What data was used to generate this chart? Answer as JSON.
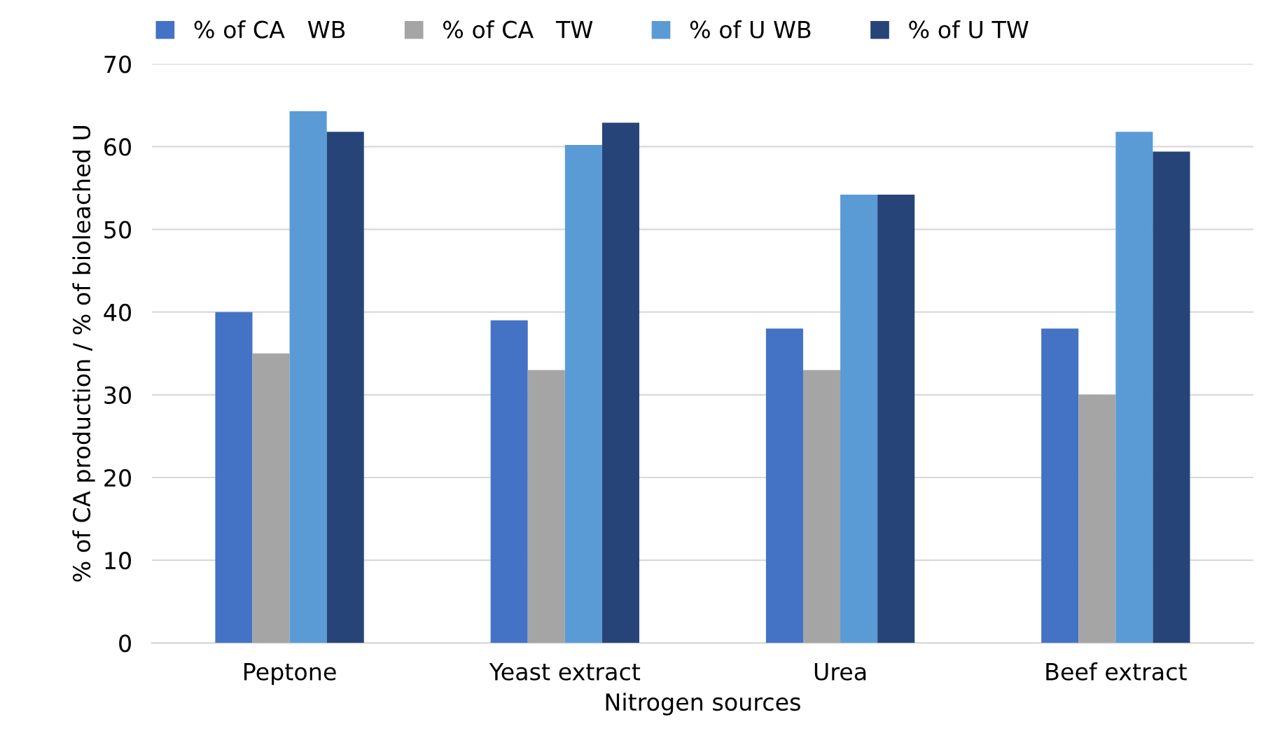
{
  "chart_data": {
    "type": "bar",
    "xlabel": "Nitrogen sources",
    "ylabel": "% of CA production / % of bioleached U",
    "categories": [
      "Peptone",
      "Yeast extract",
      "Urea",
      "Beef extract"
    ],
    "series": [
      {
        "name": "% of CA   WB",
        "color": "#4472c4",
        "values": [
          40,
          39,
          38,
          38
        ]
      },
      {
        "name": "% of CA   TW",
        "color": "#a5a5a5",
        "values": [
          35,
          33,
          33,
          30
        ]
      },
      {
        "name": "% of U WB",
        "color": "#5b9bd5",
        "values": [
          64.3,
          60.2,
          54.2,
          61.8
        ]
      },
      {
        "name": "% of U TW",
        "color": "#264478",
        "values": [
          61.8,
          62.9,
          54.2,
          59.4
        ]
      }
    ],
    "ylim": [
      0,
      70
    ],
    "yticks": [
      0,
      10,
      20,
      30,
      40,
      50,
      60,
      70
    ],
    "grid": "y",
    "legend": "top"
  }
}
